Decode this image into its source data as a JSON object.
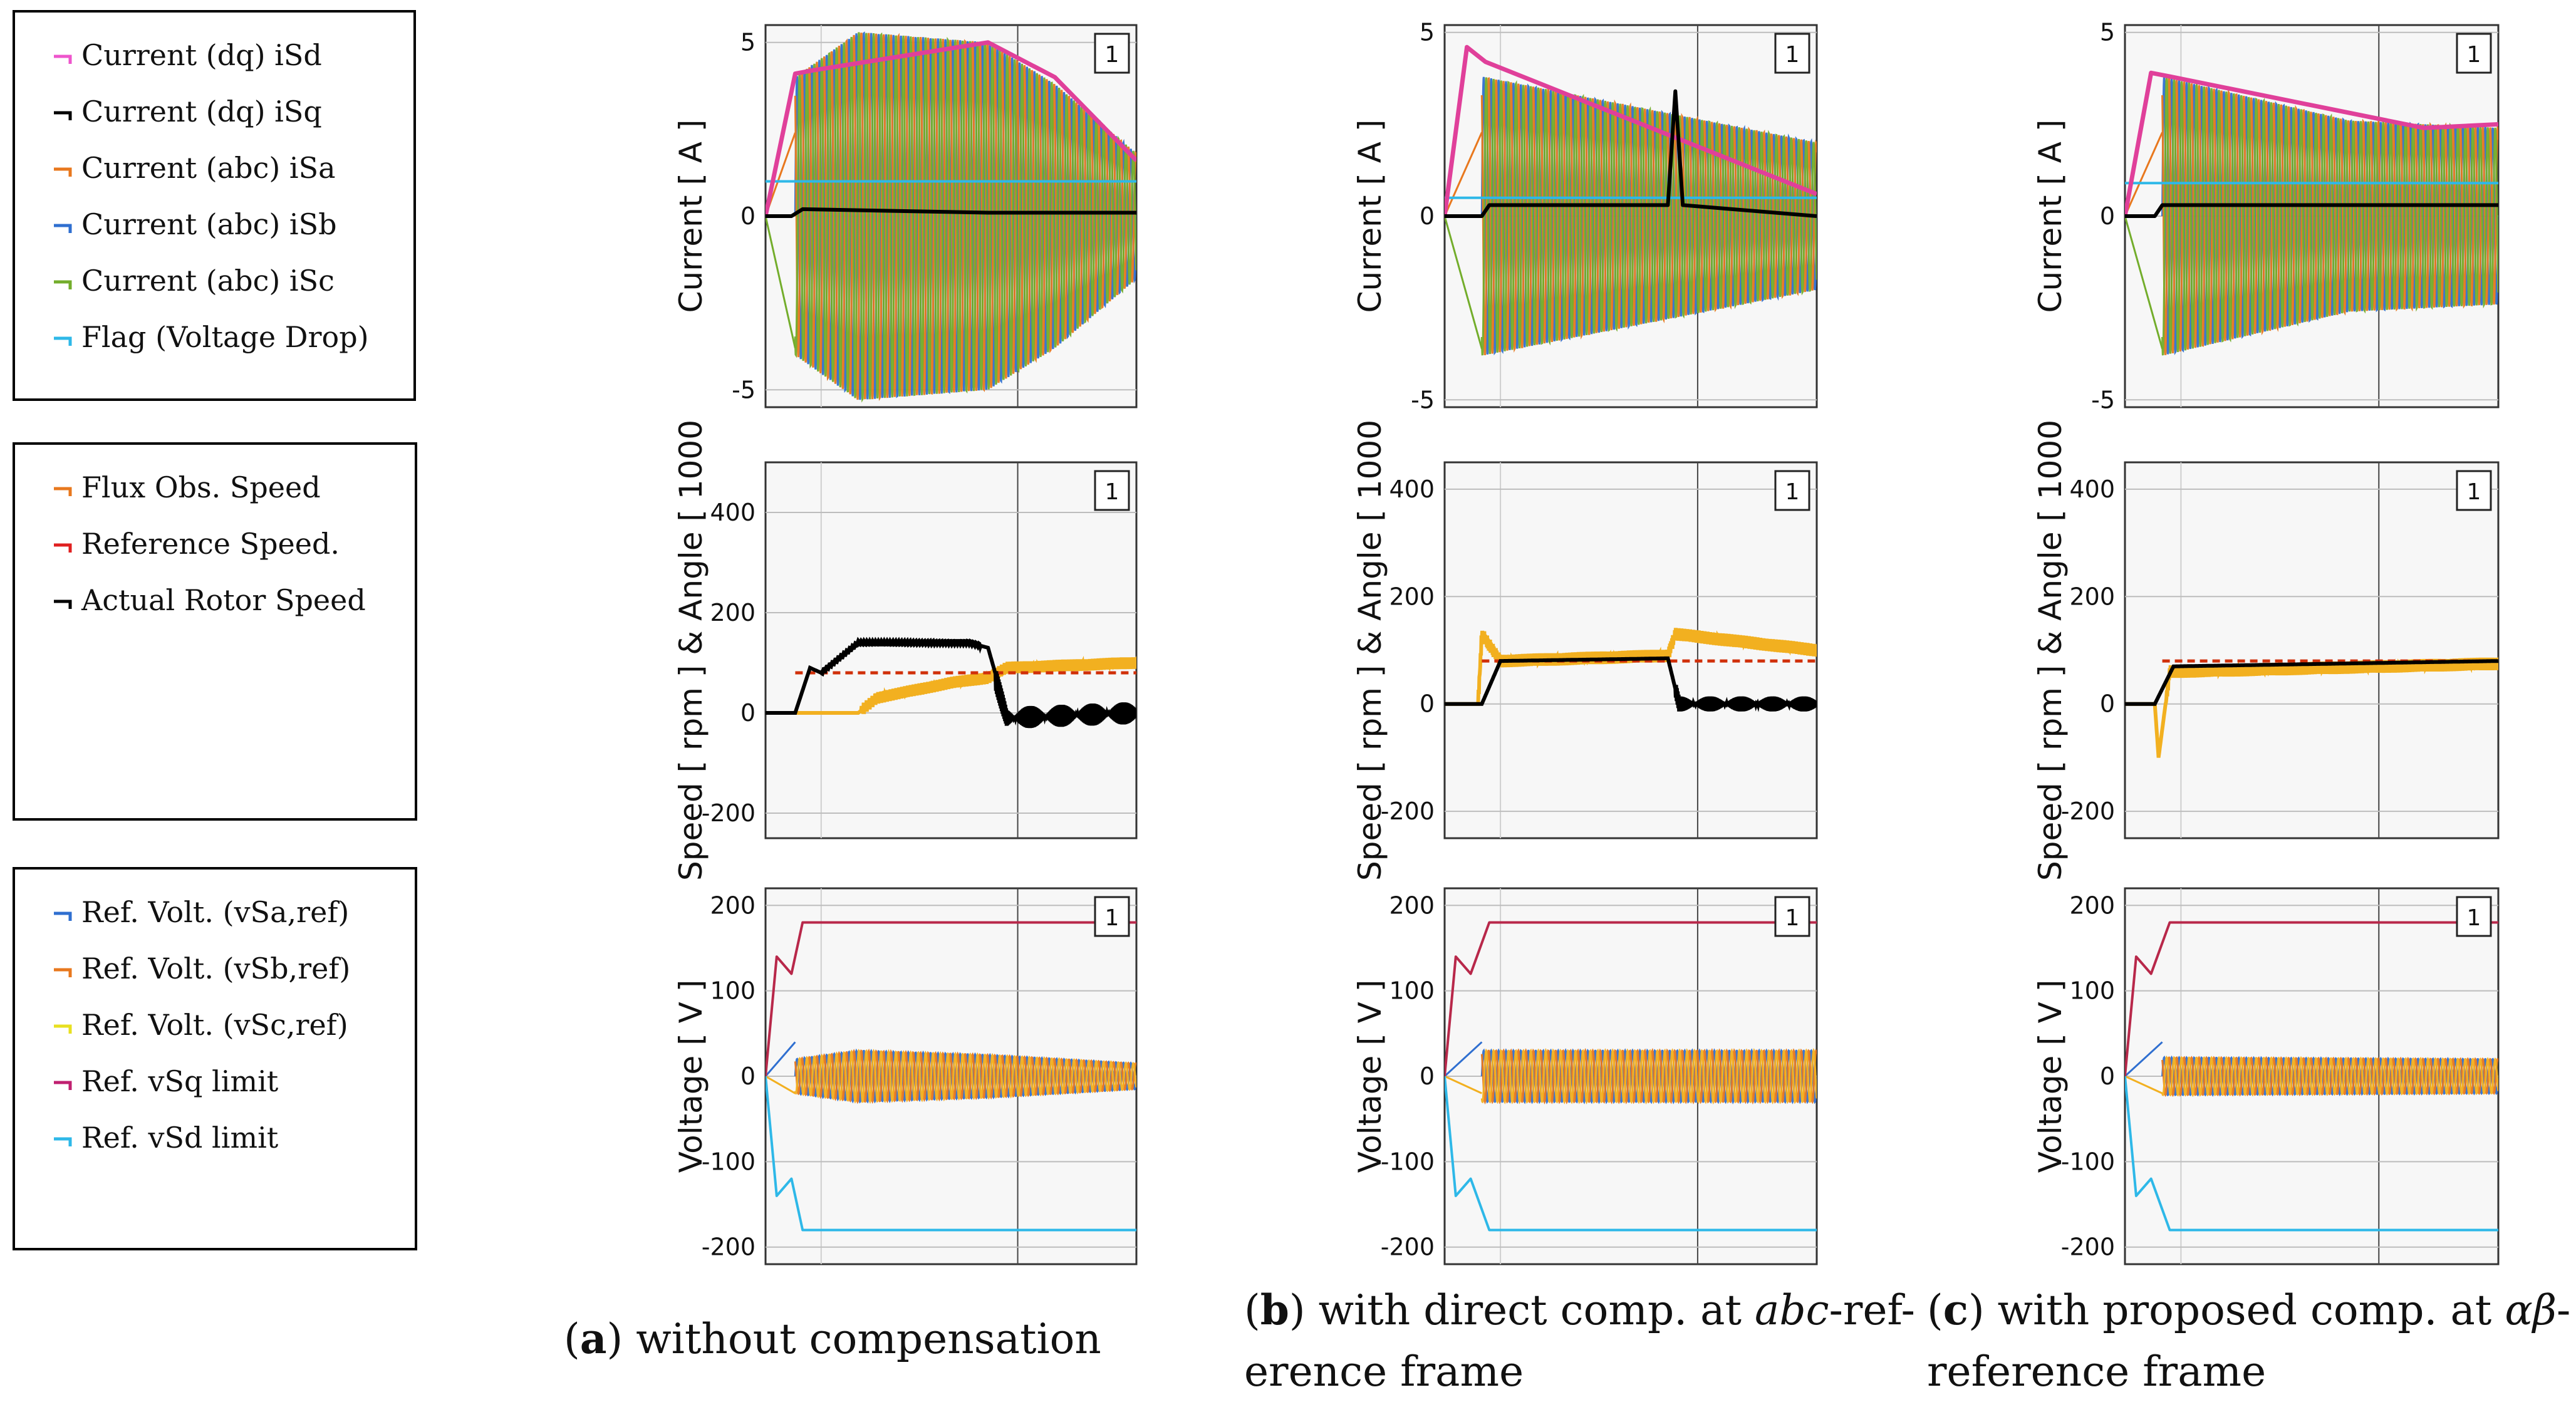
{
  "legends": [
    {
      "name": "currents",
      "items": [
        {
          "label": "Current (dq) iSd",
          "color": "#ee55cc"
        },
        {
          "label": "Current (dq) iSq",
          "color": "#000000"
        },
        {
          "label": "Current (abc) iSa",
          "color": "#e8781e"
        },
        {
          "label": "Current (abc) iSb",
          "color": "#2f6fd0"
        },
        {
          "label": "Current (abc) iSc",
          "color": "#73ad2b"
        },
        {
          "label": "Flag (Voltage Drop)",
          "color": "#2eb8e8"
        }
      ]
    },
    {
      "name": "speeds",
      "items": [
        {
          "label": "Flux Obs. Speed",
          "color": "#e8781e"
        },
        {
          "label": "Reference Speed.",
          "color": "#e02020"
        },
        {
          "label": "Actual Rotor Speed",
          "color": "#000000"
        }
      ]
    },
    {
      "name": "voltages",
      "items": [
        {
          "label": "Ref. Volt. (vSa,ref)",
          "color": "#2f6fd0"
        },
        {
          "label": "Ref. Volt. (vSb,ref)",
          "color": "#e8781e"
        },
        {
          "label": "Ref. Volt. (vSc,ref)",
          "color": "#e8e020"
        },
        {
          "label": "Ref. vSq limit",
          "color": "#c02070"
        },
        {
          "label": "Ref. vSd limit",
          "color": "#2eb8e8"
        }
      ]
    }
  ],
  "rows": [
    {
      "ylabel": "Current [ A ]",
      "ticks": [
        "5",
        "0",
        "-5"
      ]
    },
    {
      "ylabel": "Speed [ rpm ] & Angle  [ 1000",
      "ticks": [
        "400",
        "200",
        "0",
        "-200"
      ]
    },
    {
      "ylabel": "Voltage [ V ]",
      "ticks": [
        "200",
        "100",
        "0",
        "-100",
        "-200"
      ]
    }
  ],
  "badge": "1",
  "captions": [
    {
      "tag": "a",
      "line1": "without compensation",
      "line2": ""
    },
    {
      "tag": "b",
      "line1": "with direct comp. at ",
      "em": "abc",
      "line1b": "-ref-",
      "line2": "erence frame"
    },
    {
      "tag": "c",
      "line1": "with proposed comp. at ",
      "em": "αβ",
      "line1b": "-",
      "line2": "reference frame"
    }
  ],
  "chart_data": [
    {
      "type": "line",
      "panel": "a-current",
      "ylabel": "Current [ A ]",
      "ylim": [
        -5.5,
        5.5
      ],
      "yticks": [
        5,
        0,
        -5
      ],
      "series": [
        {
          "name": "Current (dq) iSd",
          "x": [
            0,
            0.08,
            0.13,
            0.6,
            0.78,
            1.0
          ],
          "y": [
            0,
            4.1,
            4.2,
            5.0,
            4.0,
            1.6
          ]
        },
        {
          "name": "Current (dq) iSq",
          "x": [
            0,
            0.07,
            0.1,
            0.6,
            0.78,
            1.0
          ],
          "y": [
            0,
            0,
            0.2,
            0.1,
            0.1,
            0.1
          ]
        },
        {
          "name": "Current (abc) envelope",
          "x": [
            0,
            0.08,
            0.25,
            0.6,
            0.78,
            1.0
          ],
          "y": [
            0,
            4.0,
            5.3,
            5.0,
            3.8,
            1.8
          ]
        },
        {
          "name": "Flag (Voltage Drop)",
          "x": [
            0,
            1
          ],
          "y": [
            1.0,
            1.0
          ]
        }
      ]
    },
    {
      "type": "line",
      "panel": "a-speed",
      "ylabel": "Speed [ rpm ] & Angle  [ 1000",
      "ylim": [
        -250,
        500
      ],
      "yticks": [
        400,
        200,
        0,
        -200
      ],
      "series": [
        {
          "name": "Reference Speed.",
          "x": [
            0.08,
            1.0
          ],
          "y": [
            80,
            80
          ]
        },
        {
          "name": "Actual Rotor Speed",
          "x": [
            0,
            0.08,
            0.12,
            0.15,
            0.25,
            0.55,
            0.6,
            0.65,
            1.0
          ],
          "y": [
            0,
            0,
            90,
            80,
            140,
            140,
            130,
            0,
            10
          ]
        },
        {
          "name": "Flux Obs. Speed",
          "x": [
            0,
            0.25,
            0.3,
            0.5,
            0.6,
            0.65,
            1.0
          ],
          "y": [
            0,
            0,
            30,
            60,
            70,
            90,
            100
          ]
        }
      ]
    },
    {
      "type": "line",
      "panel": "a-voltage",
      "ylabel": "Voltage [ V ]",
      "ylim": [
        -220,
        220
      ],
      "yticks": [
        200,
        100,
        0,
        -100,
        -200
      ],
      "series": [
        {
          "name": "Ref. vSq limit",
          "x": [
            0,
            0.03,
            0.07,
            0.1,
            1.0
          ],
          "y": [
            0,
            140,
            120,
            180,
            180
          ]
        },
        {
          "name": "Ref. vSd limit",
          "x": [
            0,
            0.03,
            0.07,
            0.1,
            1.0
          ],
          "y": [
            0,
            -140,
            -120,
            -180,
            -180
          ]
        },
        {
          "name": "Ref. Volt. envelope",
          "x": [
            0,
            0.08,
            0.25,
            0.6,
            1.0
          ],
          "y": [
            0,
            20,
            30,
            25,
            15
          ]
        }
      ]
    },
    {
      "type": "line",
      "panel": "b-current",
      "ylabel": "Current [ A ]",
      "ylim": [
        -5.2,
        5.2
      ],
      "yticks": [
        5,
        0,
        -5
      ],
      "series": [
        {
          "name": "Current (dq) iSd",
          "x": [
            0,
            0.06,
            0.11,
            1.0
          ],
          "y": [
            0,
            4.6,
            4.2,
            0.6
          ]
        },
        {
          "name": "Current (dq) iSq",
          "x": [
            0,
            0.1,
            0.12,
            0.6,
            0.62,
            0.64,
            1.0
          ],
          "y": [
            0,
            0,
            0.3,
            0.3,
            3.4,
            0.3,
            0
          ]
        },
        {
          "name": "Current (abc) envelope",
          "x": [
            0,
            0.1,
            1.0
          ],
          "y": [
            0,
            3.8,
            2.0
          ]
        },
        {
          "name": "Flag (Voltage Drop)",
          "x": [
            0,
            1
          ],
          "y": [
            0.5,
            0.5
          ]
        }
      ]
    },
    {
      "type": "line",
      "panel": "b-speed",
      "ylabel": "Speed [ rpm ] & Angle  [ 1000",
      "ylim": [
        -250,
        450
      ],
      "yticks": [
        400,
        200,
        0,
        -200
      ],
      "series": [
        {
          "name": "Reference Speed.",
          "x": [
            0.1,
            1.0
          ],
          "y": [
            80,
            80
          ]
        },
        {
          "name": "Actual Rotor Speed",
          "x": [
            0,
            0.1,
            0.15,
            0.6,
            0.63,
            1.0
          ],
          "y": [
            0,
            0,
            80,
            85,
            0,
            0
          ]
        },
        {
          "name": "Flux Obs. Speed",
          "x": [
            0,
            0.09,
            0.1,
            0.15,
            0.6,
            0.62,
            1.0
          ],
          "y": [
            0,
            0,
            130,
            80,
            90,
            130,
            100
          ]
        }
      ]
    },
    {
      "type": "line",
      "panel": "b-voltage",
      "ylabel": "Voltage [ V ]",
      "ylim": [
        -220,
        220
      ],
      "yticks": [
        200,
        100,
        0,
        -100,
        -200
      ],
      "series": [
        {
          "name": "Ref. vSq limit",
          "x": [
            0,
            0.03,
            0.07,
            0.12,
            1.0
          ],
          "y": [
            0,
            140,
            120,
            180,
            180
          ]
        },
        {
          "name": "Ref. vSd limit",
          "x": [
            0,
            0.03,
            0.07,
            0.12,
            1.0
          ],
          "y": [
            0,
            -140,
            -120,
            -180,
            -180
          ]
        },
        {
          "name": "Ref. Volt. envelope",
          "x": [
            0,
            0.1,
            1.0
          ],
          "y": [
            0,
            30,
            30
          ]
        }
      ]
    },
    {
      "type": "line",
      "panel": "c-current",
      "ylabel": "Current [ A ]",
      "ylim": [
        -5.2,
        5.2
      ],
      "yticks": [
        5,
        0,
        -5
      ],
      "series": [
        {
          "name": "Current (dq) iSd",
          "x": [
            0,
            0.07,
            0.12,
            0.8,
            1.0
          ],
          "y": [
            0,
            3.9,
            3.8,
            2.4,
            2.5
          ]
        },
        {
          "name": "Current (dq) iSq",
          "x": [
            0,
            0.08,
            0.1,
            1.0
          ],
          "y": [
            0,
            0,
            0.3,
            0.3
          ]
        },
        {
          "name": "Current (abc) envelope",
          "x": [
            0,
            0.1,
            0.6,
            1.0
          ],
          "y": [
            0,
            3.8,
            2.6,
            2.4
          ]
        },
        {
          "name": "Flag (Voltage Drop)",
          "x": [
            0,
            1
          ],
          "y": [
            0.9,
            0.9
          ]
        }
      ]
    },
    {
      "type": "line",
      "panel": "c-speed",
      "ylabel": "Speed [ rpm ] & Angle  [ 1000",
      "ylim": [
        -250,
        450
      ],
      "yticks": [
        400,
        200,
        0,
        -200
      ],
      "series": [
        {
          "name": "Reference Speed.",
          "x": [
            0.1,
            1.0
          ],
          "y": [
            80,
            80
          ]
        },
        {
          "name": "Actual Rotor Speed",
          "x": [
            0,
            0.08,
            0.13,
            1.0
          ],
          "y": [
            0,
            0,
            70,
            80
          ]
        },
        {
          "name": "Flux Obs. Speed",
          "x": [
            0,
            0.08,
            0.09,
            0.12,
            1.0
          ],
          "y": [
            0,
            0,
            -100,
            60,
            75
          ]
        }
      ]
    },
    {
      "type": "line",
      "panel": "c-voltage",
      "ylabel": "Voltage [ V ]",
      "ylim": [
        -220,
        220
      ],
      "yticks": [
        200,
        100,
        0,
        -100,
        -200
      ],
      "series": [
        {
          "name": "Ref. vSq limit",
          "x": [
            0,
            0.03,
            0.07,
            0.12,
            1.0
          ],
          "y": [
            0,
            140,
            120,
            180,
            180
          ]
        },
        {
          "name": "Ref. vSd limit",
          "x": [
            0,
            0.03,
            0.07,
            0.12,
            1.0
          ],
          "y": [
            0,
            -140,
            -120,
            -180,
            -180
          ]
        },
        {
          "name": "Ref. Volt. envelope",
          "x": [
            0,
            0.1,
            1.0
          ],
          "y": [
            0,
            22,
            20
          ]
        }
      ]
    }
  ]
}
